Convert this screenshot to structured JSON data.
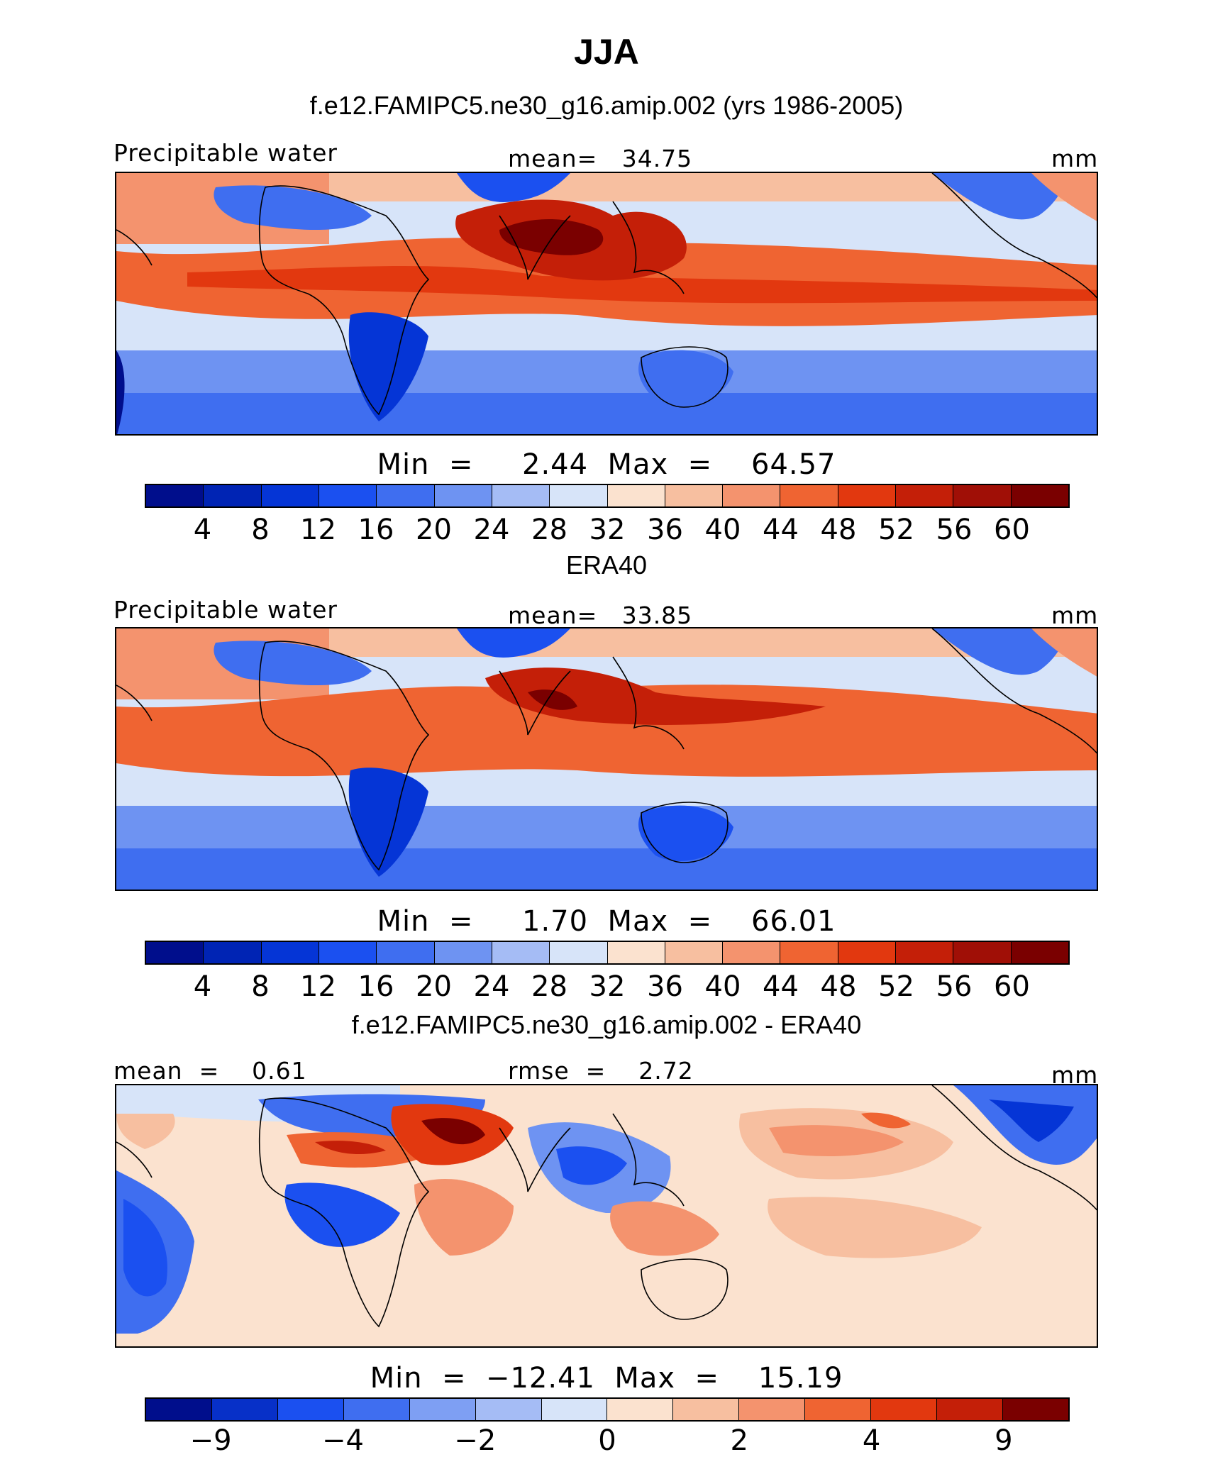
{
  "figure": {
    "title": "JJA"
  },
  "panels": [
    {
      "subtitle": "f.e12.FAMIPC5.ne30_g16.amip.002 (yrs 1986-2005)",
      "left_label": "Precipitable water",
      "center_label": "mean=   34.75",
      "units": "mm",
      "min_max": "Min  =     2.44  Max  =    64.57",
      "colorbar_ticks": [
        "4",
        "8",
        "12",
        "16",
        "20",
        "24",
        "28",
        "32",
        "36",
        "40",
        "44",
        "48",
        "52",
        "56",
        "60"
      ]
    },
    {
      "subtitle": "ERA40",
      "left_label": "Precipitable water",
      "center_label": "mean=   33.85",
      "units": "mm",
      "min_max": "Min  =     1.70  Max  =    66.01",
      "colorbar_ticks": [
        "4",
        "8",
        "12",
        "16",
        "20",
        "24",
        "28",
        "32",
        "36",
        "40",
        "44",
        "48",
        "52",
        "56",
        "60"
      ]
    },
    {
      "subtitle": "f.e12.FAMIPC5.ne30_g16.amip.002 - ERA40",
      "left_label": "mean  =    0.61",
      "center_label": "rmse  =    2.72",
      "units": "mm",
      "min_max": "Min  =  −12.41  Max  =    15.19",
      "colorbar_ticks": [
        "−9",
        "−4",
        "−2",
        "0",
        "2",
        "4",
        "9"
      ]
    }
  ],
  "colors": {
    "abs_scale": [
      "#000e8c",
      "#0024b4",
      "#0535d6",
      "#1b50f0",
      "#3f6ef0",
      "#6e93f2",
      "#a5bcf5",
      "#d7e4f9",
      "#fbe2cf",
      "#f7bfa0",
      "#f4936e",
      "#ef6432",
      "#e2380f",
      "#c41f08",
      "#a00f06",
      "#7a0000"
    ],
    "diff_scale": [
      "#000e8c",
      "#0730c8",
      "#1b50f0",
      "#3f6ef0",
      "#7e9ff3",
      "#a5bcf5",
      "#d7e4f9",
      "#fbe2cf",
      "#f7bfa0",
      "#f4936e",
      "#ef6432",
      "#e2380f",
      "#c41f08",
      "#7a0000"
    ]
  }
}
